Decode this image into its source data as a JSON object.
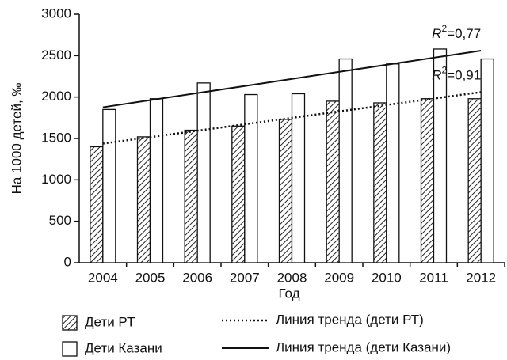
{
  "chart_data": {
    "type": "bar",
    "categories": [
      "2004",
      "2005",
      "2006",
      "2007",
      "2008",
      "2009",
      "2010",
      "2011",
      "2012"
    ],
    "series": [
      {
        "name": "Дети РТ",
        "color": "#ffffff",
        "hatch": true,
        "values": [
          1400,
          1520,
          1600,
          1650,
          1730,
          1950,
          1930,
          1980,
          1980
        ]
      },
      {
        "name": "Дети Казани",
        "color": "#ffffff",
        "hatch": false,
        "values": [
          1850,
          1980,
          2170,
          2030,
          2040,
          2460,
          2400,
          2580,
          2460
        ]
      }
    ],
    "trendlines": [
      {
        "name": "Линия тренда (дети РТ)",
        "series": 0,
        "style": "dotted",
        "r2_label": "R",
        "r2_sup": "2",
        "r2_text": "=0,91"
      },
      {
        "name": "Линия тренда (дети Казани)",
        "series": 1,
        "style": "solid",
        "r2_label": "R",
        "r2_sup": "2",
        "r2_text": "=0,77"
      }
    ],
    "ylabel": "На 1000 детей, ‰",
    "xlabel": "Год",
    "ylim": [
      0,
      3000
    ],
    "yticks": [
      0,
      500,
      1000,
      1500,
      2000,
      2500,
      3000
    ],
    "grid": false
  }
}
